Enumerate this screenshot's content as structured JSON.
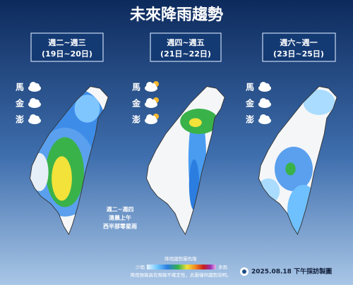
{
  "title": "未來降雨趨勢",
  "panels": [
    {
      "days": "週二~週三",
      "dates": "(19日~20日)",
      "islands": [
        "馬",
        "金",
        "澎"
      ]
    },
    {
      "days": "週四~週五",
      "dates": "(21日~22日)",
      "islands": [
        "馬",
        "金",
        "澎"
      ]
    },
    {
      "days": "週六~週一",
      "dates": "(23日~25日)",
      "islands": [
        "馬",
        "金",
        "澎"
      ]
    }
  ],
  "annotation": [
    "週二~週四",
    "清晨上午",
    "西半部零星雨"
  ],
  "legend": {
    "title": "降雨趨勢圖色階",
    "low": "少雨",
    "high": "多雨",
    "note": "降雨預報具有預報不確定性，此圖僅供趨勢說明。"
  },
  "footer": "2025.08.18 下午採訪製圖"
}
